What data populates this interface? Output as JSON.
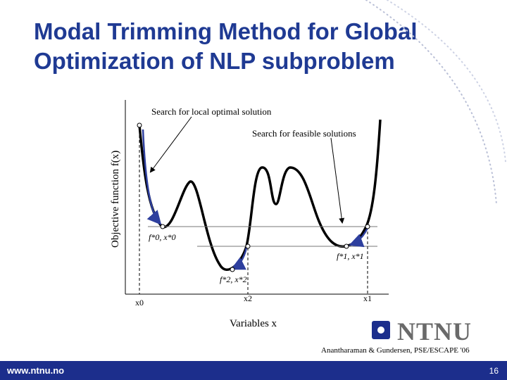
{
  "title": {
    "line1": "Modal Trimming Method for Global",
    "line2": "Optimization of NLP subproblem"
  },
  "figure": {
    "ylabel": "Objective function f(x)",
    "xlabel": "Variables x",
    "annotation_local": "Search for local optimal solution",
    "annotation_feasible": "Search for feasible solutions",
    "point_labels": [
      "f*0, x*0",
      "f*1, x*1",
      "f*2, x*2"
    ],
    "x_ticks": [
      "x0",
      "x2",
      "x1"
    ]
  },
  "logo": {
    "text": "NTNU"
  },
  "credit": "Anantharaman & Gundersen, PSE/ESCAPE '06",
  "footer": {
    "url": "www.ntnu.no",
    "page": "16"
  },
  "colors": {
    "title": "#1f3a93",
    "footer_bar": "#1c2e8c",
    "arrow": "#2e3f9e",
    "logo_gray": "#6a6a6a"
  }
}
